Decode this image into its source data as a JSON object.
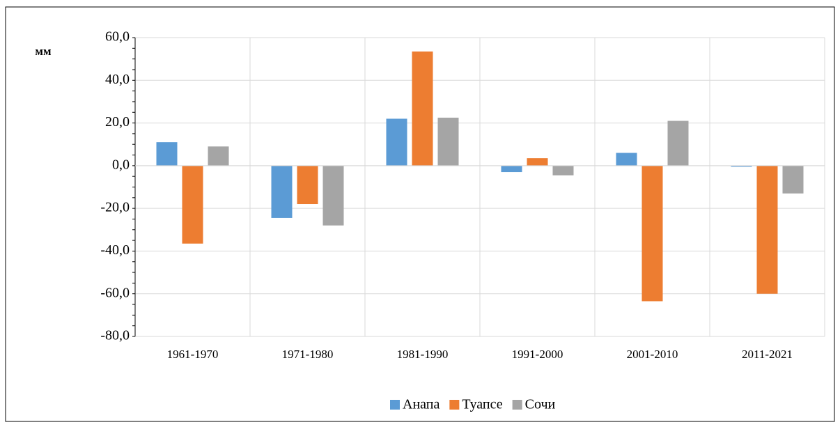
{
  "chart_data": {
    "type": "bar",
    "y_label": "мм",
    "categories": [
      "1961-1970",
      "1971-1980",
      "1981-1990",
      "1991-2000",
      "2001-2010",
      "2011-2021"
    ],
    "series": [
      {
        "name": "Анапа",
        "color": "#5b9bd5",
        "values": [
          11,
          -24.5,
          22,
          -3,
          6,
          -0.5
        ]
      },
      {
        "name": "Туапсе",
        "color": "#ed7d31",
        "values": [
          -36.5,
          -18,
          53.5,
          3.5,
          -63.5,
          -60
        ]
      },
      {
        "name": "Сочи",
        "color": "#a5a5a5",
        "values": [
          9,
          -28,
          22.5,
          -4.5,
          21,
          -13
        ]
      }
    ],
    "ylim": [
      -80,
      60
    ],
    "yticks": [
      {
        "value": -80,
        "label": "-80,0"
      },
      {
        "value": -60,
        "label": "-60,0"
      },
      {
        "value": -40,
        "label": "-40,0"
      },
      {
        "value": -20,
        "label": "-20,0"
      },
      {
        "value": 0,
        "label": "0,0"
      },
      {
        "value": 20,
        "label": "20,0"
      },
      {
        "value": 40,
        "label": "40,0"
      },
      {
        "value": 60,
        "label": "60,0"
      }
    ],
    "grid": true,
    "legend": "bottom"
  }
}
